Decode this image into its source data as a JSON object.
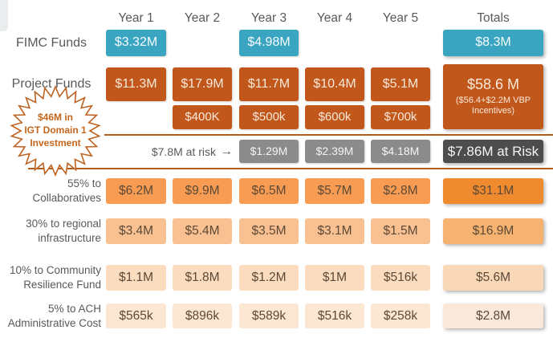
{
  "columns": {
    "year1": "Year 1",
    "year2": "Year 2",
    "year3": "Year 3",
    "year4": "Year 4",
    "year5": "Year 5",
    "totals": "Totals"
  },
  "fimc": {
    "label": "FIMC Funds",
    "year1": "$3.32M",
    "year3": "$4.98M",
    "total": "$8.3M"
  },
  "project": {
    "label": "Project Funds",
    "values": [
      "$11.3M",
      "$17.9M",
      "$11.7M",
      "$10.4M",
      "$5.1M"
    ],
    "extras": [
      "$400K",
      "$500k",
      "$600k",
      "$700k"
    ],
    "total": "$58.6 M",
    "total_note": "($56.4+$2.2M VBP\nIncentives)"
  },
  "badge": {
    "text": "$46M in\nIGT Domain 1\nInvestment"
  },
  "risk": {
    "label": "$7.8M at risk",
    "arrow": "→",
    "values": [
      "$1.29M",
      "$2.39M",
      "$4.18M"
    ],
    "total": "$7.86M at Risk"
  },
  "allocations": [
    {
      "label": "55% to\nCollaboratives",
      "values": [
        "$6.2M",
        "$9.9M",
        "$6.5M",
        "$5.7M",
        "$2.8M"
      ],
      "total": "$31.1M"
    },
    {
      "label": "30% to regional\ninfrastructure",
      "values": [
        "$3.4M",
        "$5.4M",
        "$3.5M",
        "$3.1M",
        "$1.5M"
      ],
      "total": "$16.9M"
    },
    {
      "label": "10% to Community\nResilience Fund",
      "values": [
        "$1.1M",
        "$1.8M",
        "$1.2M",
        "$1M",
        "$516k"
      ],
      "total": "$5.6M"
    },
    {
      "label": "5% to ACH\nAdministrative Cost",
      "values": [
        "$565k",
        "$896k",
        "$589k",
        "$516k",
        "$258k"
      ],
      "total": "$2.8M"
    }
  ],
  "colors": {
    "teal": "#39a5c0",
    "burnt_orange": "#c1571b",
    "gray_cell": "#8b8b8b",
    "dark_gray": "#4d4d4d",
    "alloc_55": "#f79c52",
    "alloc_30": "#f9c191",
    "alloc_10": "#fbdcbe",
    "alloc_5": "#fce7d2",
    "divider": "#b05e20",
    "badge_orange": "#c4661d"
  }
}
